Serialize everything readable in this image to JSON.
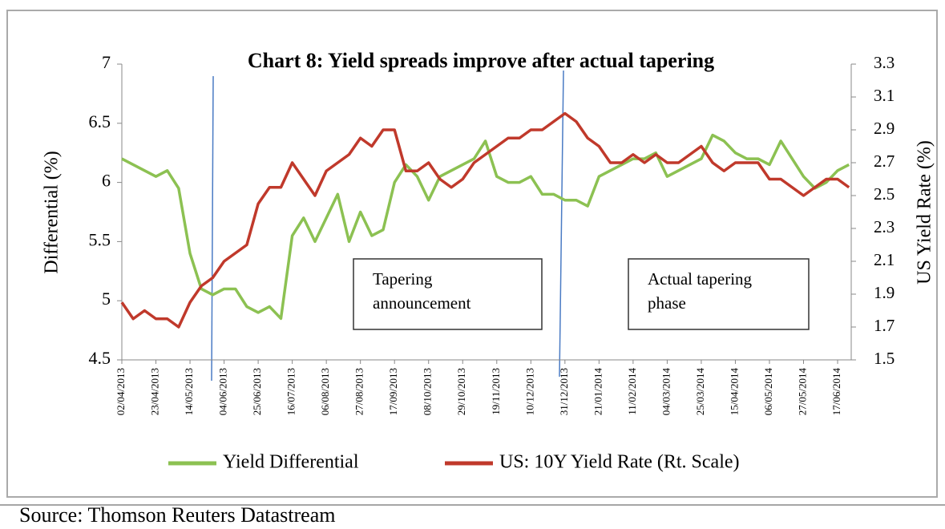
{
  "chart_data": {
    "type": "line",
    "title": "Chart  8: Yield spreads improve after actual tapering",
    "y_label": "Differential (%)",
    "y2_label": "US Yield Rate (%)",
    "source": "Source: Thomson Reuters Datastream",
    "categories": [
      "02/04/2013",
      null,
      null,
      "23/04/2013",
      null,
      null,
      "14/05/2013",
      null,
      null,
      "04/06/2013",
      null,
      null,
      "25/06/2013",
      null,
      null,
      "16/07/2013",
      null,
      null,
      "06/08/2013",
      null,
      null,
      "27/08/2013",
      null,
      null,
      "17/09/2013",
      null,
      null,
      "08/10/2013",
      null,
      null,
      "29/10/2013",
      null,
      null,
      "19/11/2013",
      null,
      null,
      "10/12/2013",
      null,
      null,
      "31/12/2013",
      null,
      null,
      "21/01/2014",
      null,
      null,
      "11/02/2014",
      null,
      null,
      "04/03/2014",
      null,
      null,
      "25/03/2014",
      null,
      null,
      "15/04/2014",
      null,
      null,
      "06/05/2014",
      null,
      null,
      "27/05/2014",
      null,
      null,
      "17/06/2014",
      null
    ],
    "series": [
      {
        "name": "Yield Differential",
        "color": "#8cc152",
        "axis": "y",
        "values": [
          6.2,
          6.15,
          6.1,
          6.05,
          6.1,
          5.95,
          5.4,
          5.1,
          5.05,
          5.1,
          5.1,
          4.95,
          4.9,
          4.95,
          4.85,
          5.55,
          5.7,
          5.5,
          5.7,
          5.9,
          5.5,
          5.75,
          5.55,
          5.6,
          6.0,
          6.15,
          6.05,
          5.85,
          6.05,
          6.1,
          6.15,
          6.2,
          6.35,
          6.05,
          6.0,
          6.0,
          6.05,
          5.9,
          5.9,
          5.85,
          5.85,
          5.8,
          6.05,
          6.1,
          6.15,
          6.2,
          6.2,
          6.25,
          6.05,
          6.1,
          6.15,
          6.2,
          6.4,
          6.35,
          6.25,
          6.2,
          6.2,
          6.15,
          6.35,
          6.2,
          6.05,
          5.95,
          6.0,
          6.1,
          6.15
        ]
      },
      {
        "name": "US: 10Y Yield Rate (Rt. Scale)",
        "color": "#c0392b",
        "axis": "y2",
        "values": [
          1.85,
          1.75,
          1.8,
          1.75,
          1.75,
          1.7,
          1.85,
          1.95,
          2.0,
          2.1,
          2.15,
          2.2,
          2.45,
          2.55,
          2.55,
          2.7,
          2.6,
          2.5,
          2.65,
          2.7,
          2.75,
          2.85,
          2.8,
          2.9,
          2.9,
          2.65,
          2.65,
          2.7,
          2.6,
          2.55,
          2.6,
          2.7,
          2.75,
          2.8,
          2.85,
          2.85,
          2.9,
          2.9,
          2.95,
          3.0,
          2.95,
          2.85,
          2.8,
          2.7,
          2.7,
          2.75,
          2.7,
          2.75,
          2.7,
          2.7,
          2.75,
          2.8,
          2.7,
          2.65,
          2.7,
          2.7,
          2.7,
          2.6,
          2.6,
          2.55,
          2.5,
          2.55,
          2.6,
          2.6,
          2.55
        ]
      }
    ],
    "ylim": [
      4.5,
      7
    ],
    "yticks": [
      4.5,
      5,
      5.5,
      6,
      6.5,
      7
    ],
    "y2lim": [
      1.5,
      3.3
    ],
    "y2ticks": [
      1.5,
      1.7,
      1.9,
      2.1,
      2.3,
      2.5,
      2.7,
      2.9,
      3.1,
      3.3
    ],
    "annotations": [
      {
        "lines": [
          "Tapering",
          "announcement"
        ]
      },
      {
        "lines": [
          "Actual tapering",
          "phase"
        ]
      }
    ]
  }
}
